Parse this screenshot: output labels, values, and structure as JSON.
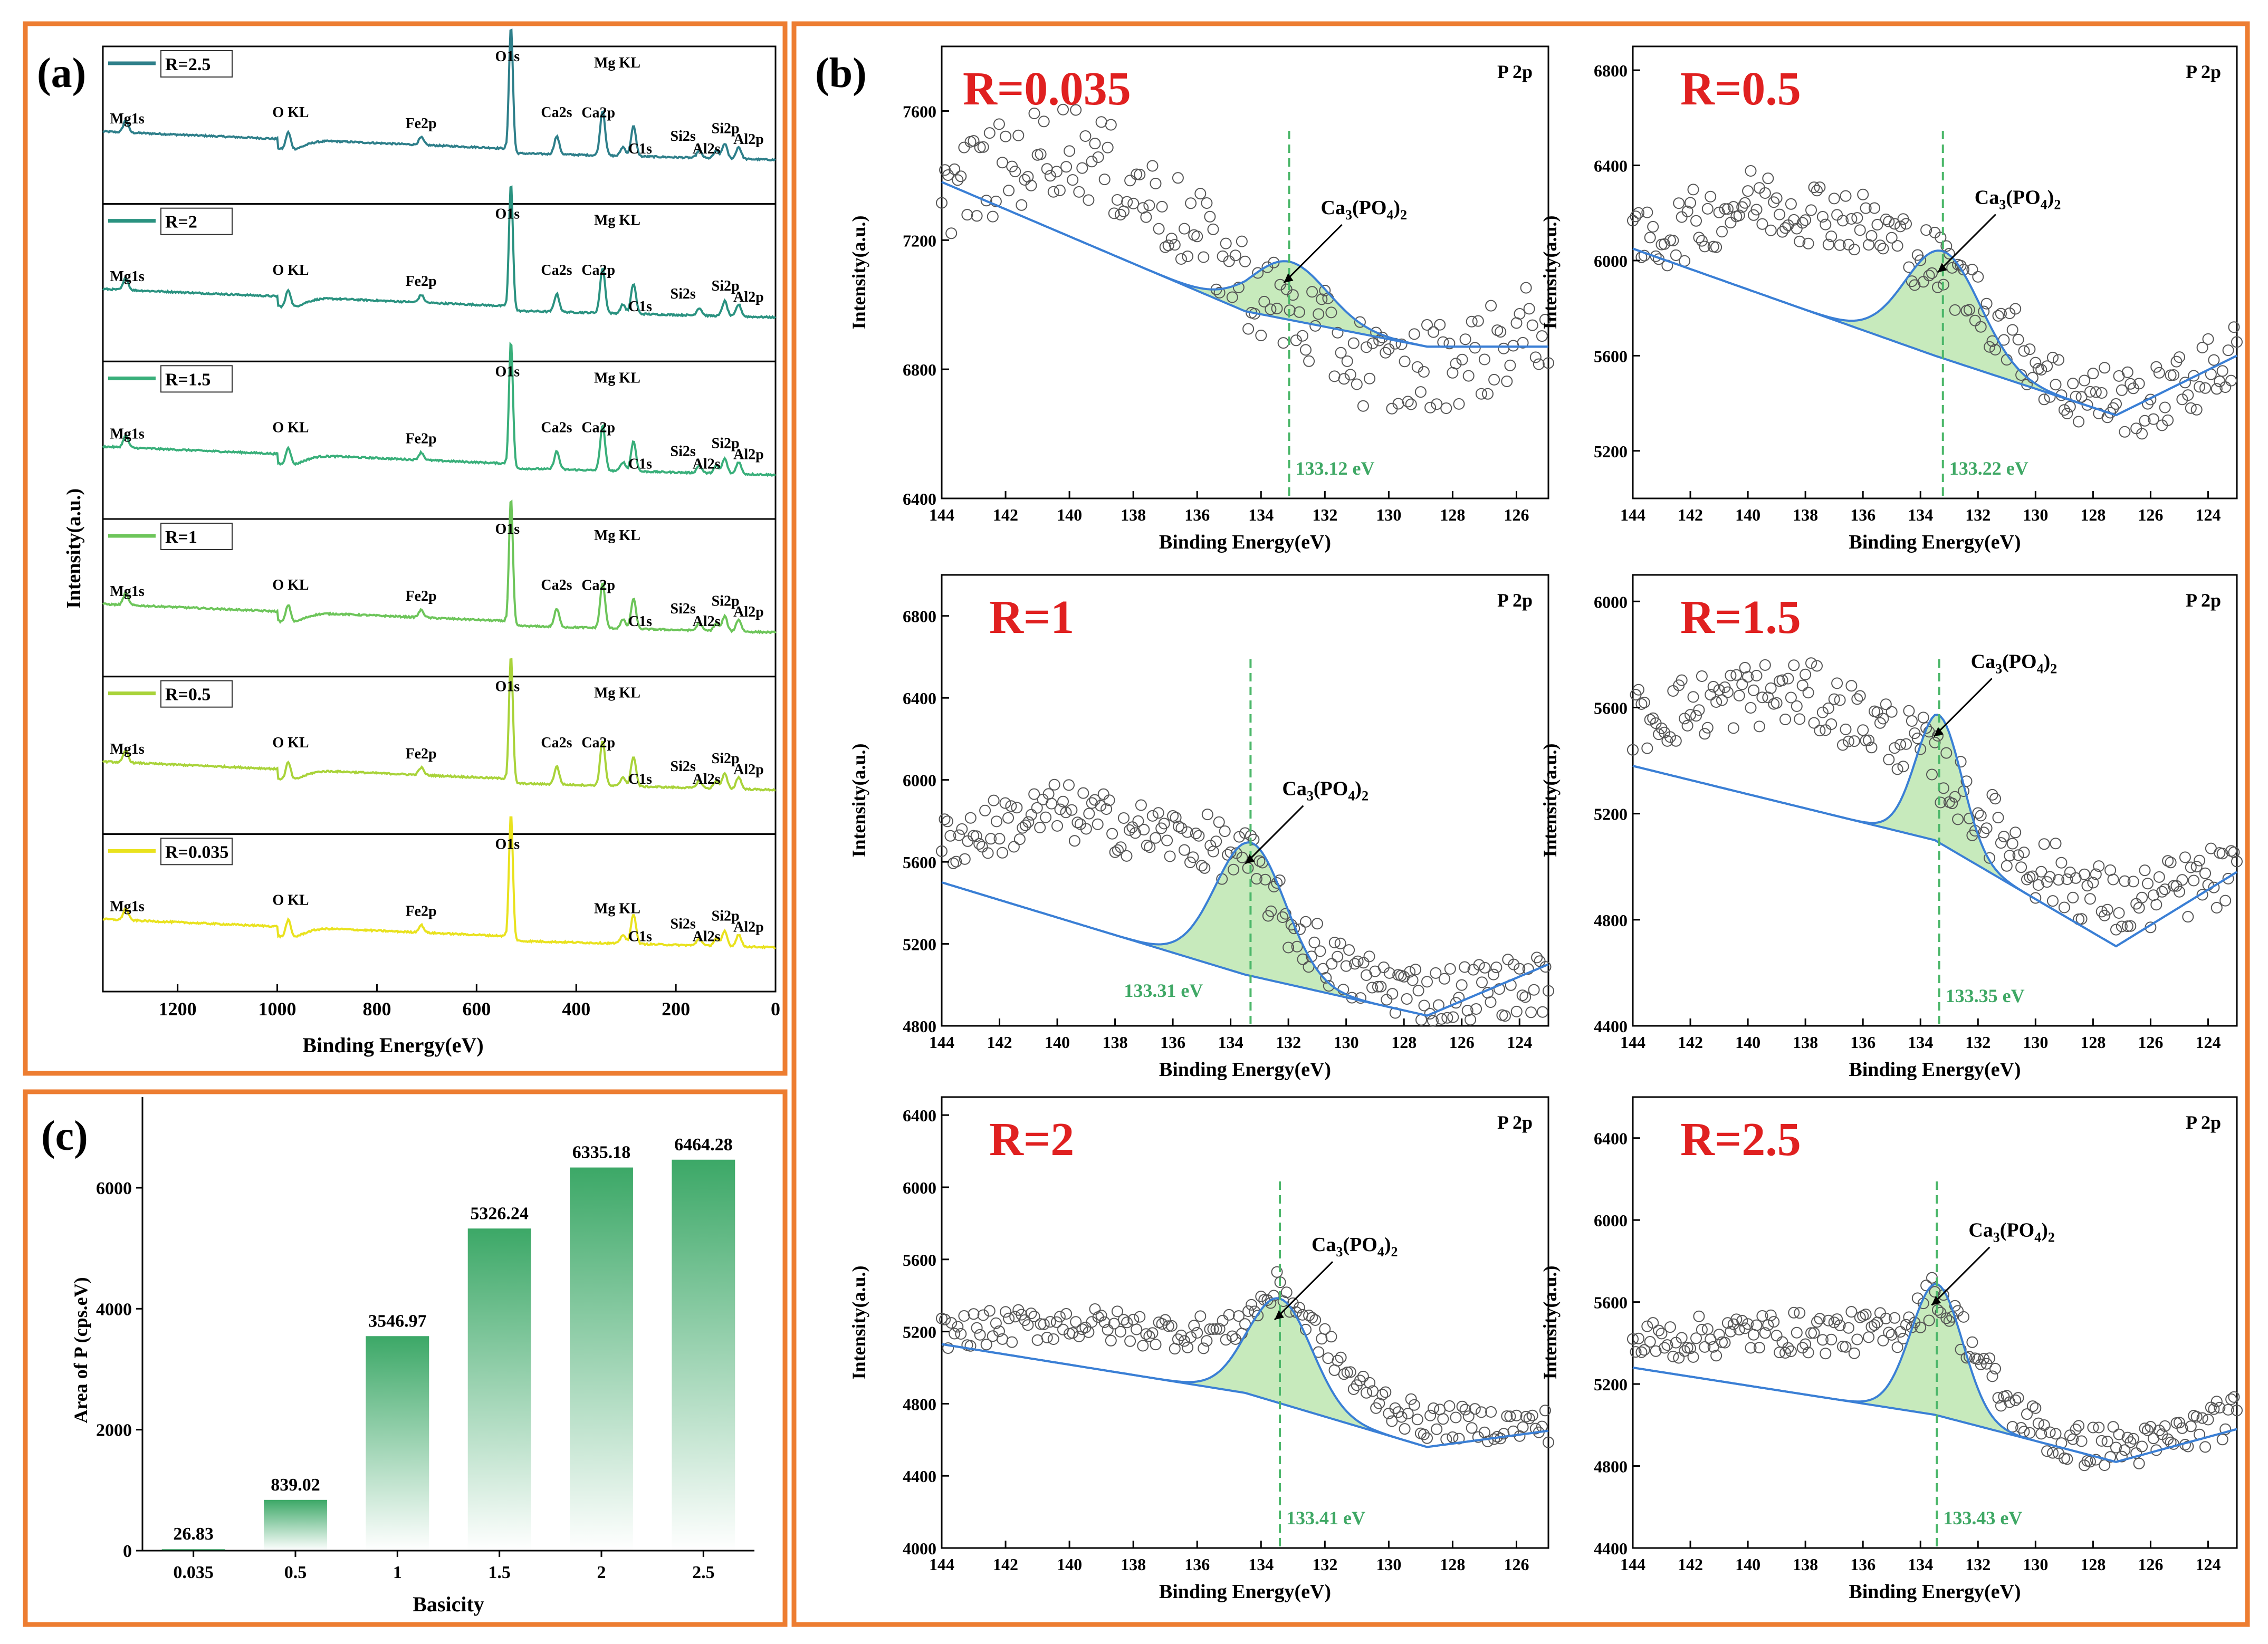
{
  "colors": {
    "frame": "#ED7D31",
    "baseline": "#3A7FD5",
    "fill": "#BDE6B0",
    "fillStroke": "#7CC46E",
    "dashed": "#4CB76A",
    "peakLabel": "#3FA865",
    "rLabel": "#E02020",
    "bar": "#3CA867"
  },
  "panel_a": {
    "label": "(a)",
    "ylabel": "Intensity(a.u.)",
    "xlabel": "Binding Energy(eV)",
    "xlim": [
      1350,
      0
    ],
    "xticks": [
      1200,
      1000,
      800,
      600,
      400,
      200,
      0
    ],
    "spectra": [
      {
        "legend": "R=2.5",
        "color": "#2E7F8A",
        "peaks": [
          "Mg1s",
          "O  KL",
          "Fe2p",
          "O1s",
          "Ca2s",
          "Ca2p",
          "Mg  KL",
          "C1s",
          "Si2s",
          "Al2s",
          "Si2p",
          "Al2p"
        ]
      },
      {
        "legend": "R=2",
        "color": "#2A9280",
        "peaks": [
          "Mg1s",
          "O  KL",
          "Fe2p",
          "O1s",
          "Ca2s",
          "Ca2p",
          "Mg  KL",
          "C1s",
          "Si2s",
          "Si2p",
          "Al2p"
        ]
      },
      {
        "legend": "R=1.5",
        "color": "#39AF7A",
        "peaks": [
          "Mg1s",
          "O  KL",
          "Fe2p",
          "O1s",
          "Ca2s",
          "Ca2p",
          "Mg  KL",
          "C1s",
          "Si2s",
          "Al2s",
          "Si2p",
          "Al2p"
        ]
      },
      {
        "legend": "R=1",
        "color": "#6DC55A",
        "peaks": [
          "Mg1s",
          "O  KL",
          "Fe2p",
          "O1s",
          "Ca2s",
          "Ca2p",
          "Mg  KL",
          "C1s",
          "Si2s",
          "Al2s",
          "Si2p",
          "Al2p"
        ]
      },
      {
        "legend": "R=0.5",
        "color": "#A9D33A",
        "peaks": [
          "Mg1s",
          "O  KL",
          "Fe2p",
          "O1s",
          "Ca2s",
          "Ca2p",
          "Mg  KL",
          "C1s",
          "Si2s",
          "Al2s",
          "Si2p",
          "Al2p"
        ]
      },
      {
        "legend": "R=0.035",
        "color": "#E9E21E",
        "peaks": [
          "Mg1s",
          "O  KL",
          "Fe2p",
          "O1s",
          "Mg KL",
          "C1s",
          "Si2s",
          "Al2s",
          "Si2p",
          "Al2p"
        ]
      }
    ]
  },
  "panel_b": {
    "label": "(b)",
    "ylabel": "Intensity(a.u.)",
    "xlabel": "Binding Energy(eV)",
    "corner": "P 2p",
    "species": "Ca3(PO4)2",
    "subplots": [
      {
        "r": "R=0.035",
        "peak_ev": "133.12 eV",
        "peak_x": 133.12,
        "xlim": [
          144,
          125
        ],
        "xticks": [
          144,
          142,
          140,
          138,
          136,
          134,
          132,
          130,
          128,
          126
        ],
        "ylim": [
          6400,
          7800
        ],
        "yticks": [
          6400,
          6800,
          7200,
          7600
        ]
      },
      {
        "r": "R=0.5",
        "peak_ev": "133.22 eV",
        "peak_x": 133.22,
        "xlim": [
          144,
          123
        ],
        "xticks": [
          144,
          142,
          140,
          138,
          136,
          134,
          132,
          130,
          128,
          126,
          124
        ],
        "ylim": [
          5000,
          6900
        ],
        "yticks": [
          5200,
          5600,
          6000,
          6400,
          6800
        ]
      },
      {
        "r": "R=1",
        "peak_ev": "133.31 eV",
        "peak_x": 133.31,
        "xlim": [
          144,
          123
        ],
        "xticks": [
          144,
          142,
          140,
          138,
          136,
          134,
          132,
          130,
          128,
          126,
          124
        ],
        "ylim": [
          4800,
          7000
        ],
        "yticks": [
          4800,
          5200,
          5600,
          6000,
          6400,
          6800
        ]
      },
      {
        "r": "R=1.5",
        "peak_ev": "133.35 eV",
        "peak_x": 133.35,
        "xlim": [
          144,
          123
        ],
        "xticks": [
          144,
          142,
          140,
          138,
          136,
          134,
          132,
          130,
          128,
          126,
          124
        ],
        "ylim": [
          4400,
          6100
        ],
        "yticks": [
          4400,
          4800,
          5200,
          5600,
          6000
        ]
      },
      {
        "r": "R=2",
        "peak_ev": "133.41 eV",
        "peak_x": 133.41,
        "xlim": [
          144,
          125
        ],
        "xticks": [
          144,
          142,
          140,
          138,
          136,
          134,
          132,
          130,
          128,
          126
        ],
        "ylim": [
          4000,
          6500
        ],
        "yticks": [
          4000,
          4400,
          4800,
          5200,
          5600,
          6000,
          6400
        ]
      },
      {
        "r": "R=2.5",
        "peak_ev": "133.43 eV",
        "peak_x": 133.43,
        "xlim": [
          144,
          123
        ],
        "xticks": [
          144,
          142,
          140,
          138,
          136,
          134,
          132,
          130,
          128,
          126,
          124
        ],
        "ylim": [
          4400,
          6600
        ],
        "yticks": [
          4400,
          4800,
          5200,
          5600,
          6000,
          6400
        ]
      }
    ]
  },
  "chart_data": {
    "type": "bar",
    "label": "(c)",
    "categories": [
      "0.035",
      "0.5",
      "1",
      "1.5",
      "2",
      "2.5"
    ],
    "values": [
      26.83,
      839.02,
      3546.97,
      5326.24,
      6335.18,
      6464.28
    ],
    "value_labels": [
      "26.83",
      "839.02",
      "3546.97",
      "5326.24",
      "6335.18",
      "6464.28"
    ],
    "xlabel": "Basicity",
    "ylabel": "Area of P (cps.eV)",
    "ylim": [
      0,
      7500
    ],
    "yticks": [
      0,
      2000,
      4000,
      6000
    ],
    "grid": false
  }
}
